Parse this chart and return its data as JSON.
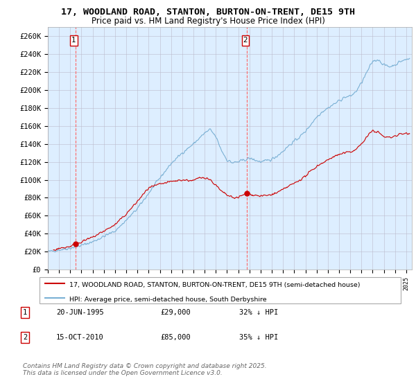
{
  "title": "17, WOODLAND ROAD, STANTON, BURTON-ON-TRENT, DE15 9TH",
  "subtitle": "Price paid vs. HM Land Registry's House Price Index (HPI)",
  "ylim": [
    0,
    270000
  ],
  "yticks": [
    0,
    20000,
    40000,
    60000,
    80000,
    100000,
    120000,
    140000,
    160000,
    180000,
    200000,
    220000,
    240000,
    260000
  ],
  "ytick_labels": [
    "£0",
    "£20K",
    "£40K",
    "£60K",
    "£80K",
    "£100K",
    "£120K",
    "£140K",
    "£160K",
    "£180K",
    "£200K",
    "£220K",
    "£240K",
    "£260K"
  ],
  "xlim_start": 1993.0,
  "xlim_end": 2025.5,
  "price_paid_color": "#cc0000",
  "hpi_color": "#7ab0d4",
  "sale1_date": 1995.47,
  "sale1_price": 29000,
  "sale1_label": "1",
  "sale2_date": 2010.79,
  "sale2_price": 85000,
  "sale2_label": "2",
  "legend_line1": "17, WOODLAND ROAD, STANTON, BURTON-ON-TRENT, DE15 9TH (semi-detached house)",
  "legend_line2": "HPI: Average price, semi-detached house, South Derbyshire",
  "annotation1_date": "20-JUN-1995",
  "annotation1_price": "£29,000",
  "annotation1_hpi": "32% ↓ HPI",
  "annotation2_date": "15-OCT-2010",
  "annotation2_price": "£85,000",
  "annotation2_hpi": "35% ↓ HPI",
  "copyright_text": "Contains HM Land Registry data © Crown copyright and database right 2025.\nThis data is licensed under the Open Government Licence v3.0.",
  "bg_color": "#ffffff",
  "plot_bg_color": "#ddeeff",
  "grid_color": "#bbbbcc",
  "hatch_color": "#c8d8e8",
  "title_fontsize": 9.5,
  "subtitle_fontsize": 8.5,
  "axis_fontsize": 7.5,
  "legend_fontsize": 7.5,
  "annotation_fontsize": 8,
  "copyright_fontsize": 6.5
}
